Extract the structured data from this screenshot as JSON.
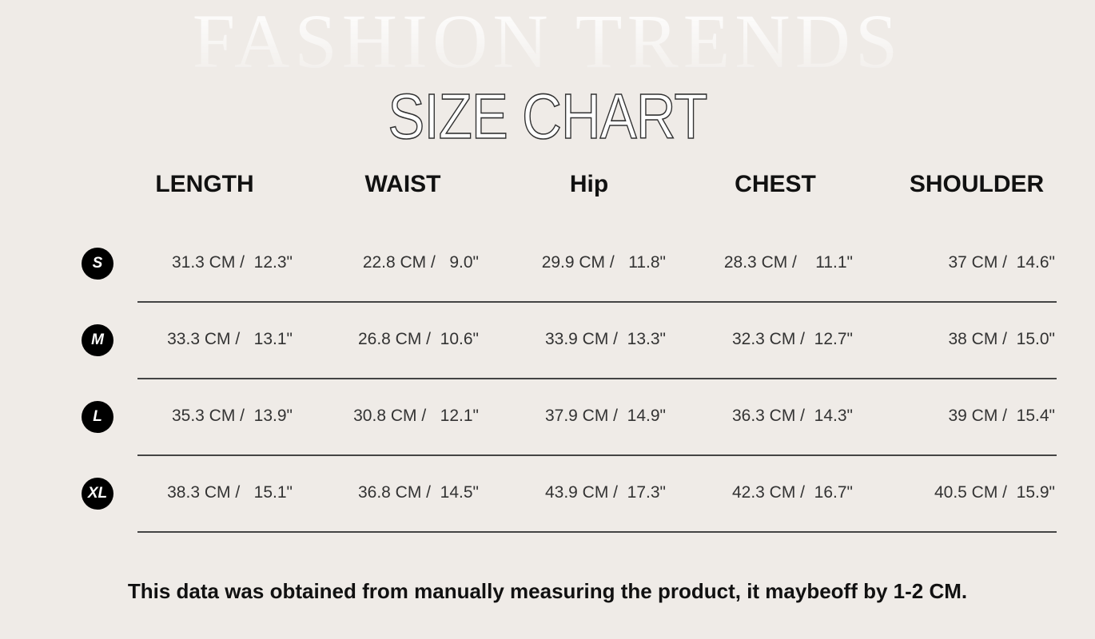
{
  "chart_data": {
    "type": "table",
    "watermark": "FASHION TRENDS",
    "title": "SIZE CHART",
    "columns": [
      "LENGTH",
      "WAIST",
      "Hip",
      "CHEST",
      "SHOULDER"
    ],
    "rows": [
      {
        "size": "S",
        "cells": [
          "31.3 CM /  12.3\"",
          "22.8 CM /   9.0\"",
          "29.9 CM /   11.8\"",
          "28.3 CM /    11.1\"",
          "37 CM /  14.6\""
        ]
      },
      {
        "size": "M",
        "cells": [
          "33.3 CM /   13.1\"",
          "26.8 CM /  10.6\"",
          "33.9 CM /  13.3\"",
          "32.3 CM /  12.7\"",
          "38 CM /  15.0\""
        ]
      },
      {
        "size": "L",
        "cells": [
          "35.3 CM /  13.9\"",
          "30.8 CM /   12.1\"",
          "37.9 CM /  14.9\"",
          "36.3 CM /  14.3\"",
          "39 CM /  15.4\""
        ]
      },
      {
        "size": "XL",
        "cells": [
          "38.3 CM /   15.1\"",
          "36.8 CM /  14.5\"",
          "43.9 CM /  17.3\"",
          "42.3 CM /  16.7\"",
          "40.5 CM /  15.9\""
        ]
      }
    ],
    "note": "This data was obtained from manually measuring the product, it maybeoff by 1-2 CM."
  },
  "colors": {
    "background": "#efebe7",
    "badge": "#000000",
    "divider": "#444444"
  }
}
